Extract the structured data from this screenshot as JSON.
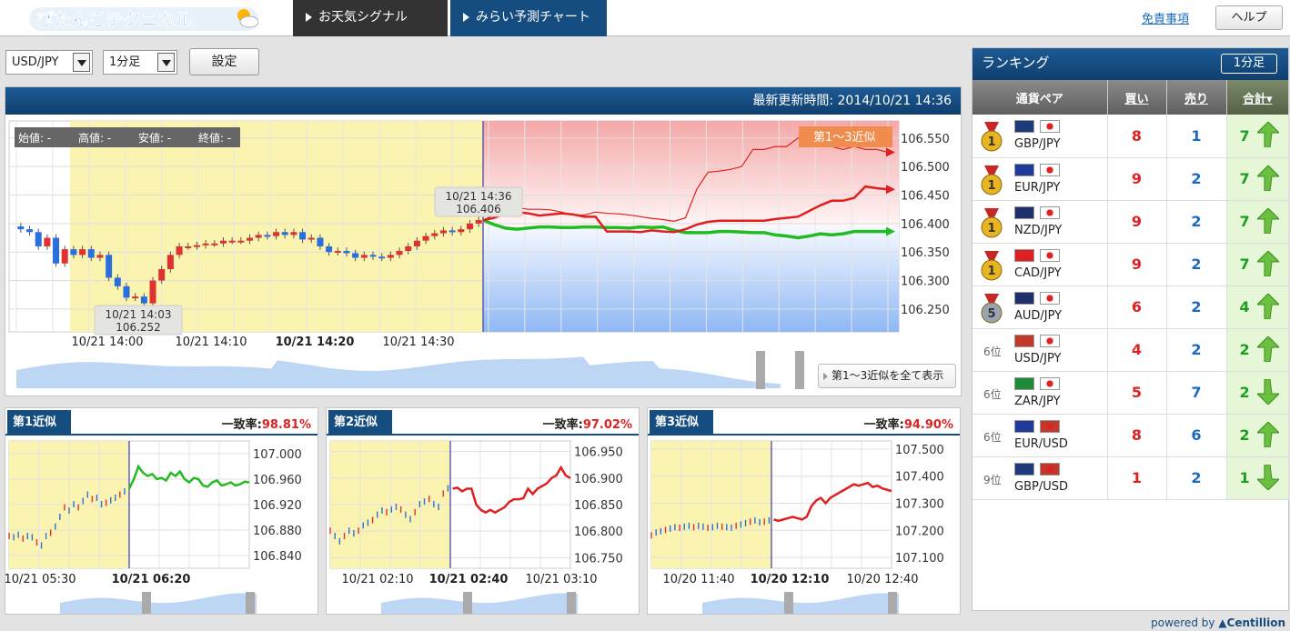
{
  "header": {
    "logo_text": "ぴたんこテクニカル",
    "tabs": [
      {
        "label": "お天気シグナル"
      },
      {
        "label": "みらい予測チャート"
      }
    ],
    "disclaimer": "免責事項",
    "help": "ヘルプ"
  },
  "controls": {
    "pair_select": "USD/JPY",
    "interval_select": "1分足",
    "set_button": "設定"
  },
  "main": {
    "updated_label": "最新更新時間: 2014/10/21 14:36",
    "ohlc": {
      "open": "始値: -",
      "high": "高値: -",
      "low": "安値: -",
      "close": "終値: -"
    },
    "legend_badge": "第1〜3近似",
    "callout_current": {
      "time": "10/21 14:36",
      "price": "106.406"
    },
    "callout_low": {
      "time": "10/21 14:03",
      "price": "106.252"
    },
    "show_all_button": "第1〜3近似を全て表示"
  },
  "chart_data": [
    {
      "type": "candlestick",
      "id": "main",
      "title": "USD/JPY 1分足",
      "x_ticks": [
        "10/21 14:00",
        "10/21 14:10",
        "10/21 14:20",
        "10/21 14:30"
      ],
      "y_ticks": [
        106.55,
        106.5,
        106.45,
        106.4,
        106.35,
        106.3,
        106.25
      ],
      "ylim": [
        106.21,
        106.58
      ],
      "current": {
        "time": "10/21 14:36",
        "price": 106.406
      },
      "low": {
        "time": "10/21 14:03",
        "price": 106.252
      },
      "closes": [
        106.39,
        106.385,
        106.36,
        106.375,
        106.33,
        106.355,
        106.345,
        106.355,
        106.34,
        106.345,
        106.305,
        106.29,
        106.27,
        106.272,
        106.26,
        106.3,
        106.32,
        106.345,
        106.36,
        106.36,
        106.362,
        106.365,
        106.365,
        106.37,
        106.37,
        106.37,
        106.375,
        106.38,
        106.378,
        106.385,
        106.38,
        106.385,
        106.372,
        106.375,
        106.36,
        106.35,
        106.352,
        106.348,
        106.34,
        106.345,
        106.342,
        106.34,
        106.345,
        106.352,
        106.36,
        106.37,
        106.378,
        106.383,
        106.388,
        106.385,
        106.39,
        106.4,
        106.406
      ],
      "series": [
        {
          "name": "第1近似",
          "values": [
            106.406,
            106.398,
            106.392,
            106.39,
            106.392,
            106.394,
            106.394,
            106.393,
            106.393,
            106.394,
            106.394,
            106.393,
            106.393,
            106.392,
            106.394,
            106.393,
            106.394,
            106.388,
            106.384,
            106.384,
            106.384,
            106.386,
            106.386,
            106.385,
            106.384,
            106.384,
            106.38,
            106.378,
            106.375,
            106.378,
            106.382,
            106.38,
            106.382,
            106.386,
            106.386,
            106.386,
            106.386
          ]
        },
        {
          "name": "第2近似",
          "values": [
            106.406,
            106.41,
            106.418,
            106.42,
            106.418,
            106.414,
            106.416,
            106.418,
            106.416,
            106.412,
            106.412,
            106.386,
            106.386,
            106.386,
            106.385,
            106.388,
            106.386,
            106.385,
            106.39,
            106.398,
            106.403,
            106.405,
            106.405,
            106.405,
            106.405,
            106.405,
            106.408,
            106.41,
            106.412,
            106.422,
            106.432,
            106.44,
            106.44,
            106.445,
            106.465,
            106.462,
            106.46
          ]
        },
        {
          "name": "第3近似",
          "values": [
            106.406,
            106.415,
            106.422,
            106.428,
            106.425,
            106.425,
            106.424,
            106.42,
            106.415,
            106.415,
            106.42,
            106.418,
            106.417,
            106.415,
            106.412,
            106.409,
            106.407,
            106.404,
            106.41,
            106.46,
            106.49,
            106.492,
            106.495,
            106.5,
            106.53,
            106.53,
            106.535,
            106.535,
            106.55,
            106.545,
            106.54,
            106.535,
            106.53,
            106.535,
            106.53,
            106.53,
            106.525
          ]
        }
      ]
    },
    {
      "type": "line",
      "id": "sub1",
      "title": "第1近似",
      "match_rate": "98.81%",
      "x_ticks": [
        "10/21 05:30",
        "10/21 06:20"
      ],
      "y_ticks": [
        107.0,
        106.96,
        106.92,
        106.88,
        106.84
      ],
      "ylim": [
        106.82,
        107.02
      ],
      "values": [
        106.87,
        106.868,
        106.872,
        106.866,
        106.87,
        106.868,
        106.86,
        106.855,
        106.87,
        106.875,
        106.885,
        106.9,
        106.915,
        106.91,
        106.92,
        106.915,
        106.925,
        106.935,
        106.928,
        106.93,
        106.92,
        106.922,
        106.926,
        106.93,
        106.935,
        106.94,
        106.945,
        106.96,
        106.98,
        106.97,
        106.965,
        106.968,
        106.96,
        106.962,
        106.958,
        106.97,
        106.965,
        106.972,
        106.96,
        106.955,
        106.962,
        106.96,
        106.95,
        106.948,
        106.955,
        106.958,
        106.95,
        106.952,
        106.955,
        106.95,
        106.952,
        106.956,
        106.955
      ]
    },
    {
      "type": "line",
      "id": "sub2",
      "title": "第2近似",
      "match_rate": "97.02%",
      "x_ticks": [
        "10/21 02:10",
        "10/21 02:40",
        "10/21 03:10"
      ],
      "y_ticks": [
        106.95,
        106.9,
        106.85,
        106.8,
        106.75
      ],
      "ylim": [
        106.73,
        106.97
      ],
      "values": [
        106.8,
        106.79,
        106.78,
        106.79,
        106.8,
        106.795,
        106.8,
        106.81,
        106.815,
        106.82,
        106.83,
        106.838,
        106.835,
        106.84,
        106.845,
        106.84,
        106.83,
        106.822,
        106.835,
        106.85,
        106.855,
        106.86,
        106.85,
        106.845,
        106.87,
        106.88,
        106.88,
        106.882,
        106.875,
        106.88,
        106.88,
        106.85,
        106.84,
        106.835,
        106.84,
        106.835,
        106.84,
        106.845,
        106.855,
        106.86,
        106.86,
        106.862,
        106.88,
        106.87,
        106.88,
        106.885,
        106.89,
        106.9,
        106.905,
        106.92,
        106.905,
        106.9
      ]
    },
    {
      "type": "line",
      "id": "sub3",
      "title": "第3近似",
      "match_rate": "94.90%",
      "x_ticks": [
        "10/20 11:40",
        "10/20 12:10",
        "10/20 12:40"
      ],
      "y_ticks": [
        107.5,
        107.4,
        107.3,
        107.2,
        107.1
      ],
      "ylim": [
        107.06,
        107.53
      ],
      "values": [
        107.18,
        107.19,
        107.195,
        107.2,
        107.205,
        107.21,
        107.208,
        107.212,
        107.215,
        107.21,
        107.215,
        107.212,
        107.208,
        107.21,
        107.215,
        107.212,
        107.21,
        107.208,
        107.215,
        107.22,
        107.225,
        107.23,
        107.235,
        107.228,
        107.23,
        107.235,
        107.24,
        107.235,
        107.24,
        107.245,
        107.25,
        107.245,
        107.24,
        107.25,
        107.29,
        107.31,
        107.32,
        107.3,
        107.32,
        107.33,
        107.34,
        107.35,
        107.36,
        107.37,
        107.365,
        107.37,
        107.375,
        107.36,
        107.365,
        107.355,
        107.35,
        107.345
      ]
    }
  ],
  "ranking": {
    "title": "ランキング",
    "interval_button": "1分足",
    "columns": {
      "pair": "通貨ペア",
      "buy": "買い",
      "sell": "売り",
      "total": "合計▾"
    },
    "rows": [
      {
        "rank": "1",
        "rank_text": "",
        "medal": "gold",
        "flags": [
          "#1f3a7a",
          "#ffffff"
        ],
        "pair": "GBP/JPY",
        "buy": "8",
        "sell": "1",
        "total": "7",
        "dir": "up"
      },
      {
        "rank": "1",
        "rank_text": "",
        "medal": "gold",
        "flags": [
          "#1f3a9a",
          "#ffffff"
        ],
        "pair": "EUR/JPY",
        "buy": "9",
        "sell": "2",
        "total": "7",
        "dir": "up"
      },
      {
        "rank": "1",
        "rank_text": "",
        "medal": "gold",
        "flags": [
          "#1f2f6a",
          "#ffffff"
        ],
        "pair": "NZD/JPY",
        "buy": "9",
        "sell": "2",
        "total": "7",
        "dir": "up"
      },
      {
        "rank": "1",
        "rank_text": "",
        "medal": "gold",
        "flags": [
          "#e02020",
          "#ffffff"
        ],
        "pair": "CAD/JPY",
        "buy": "9",
        "sell": "2",
        "total": "7",
        "dir": "up"
      },
      {
        "rank": "5",
        "rank_text": "",
        "medal": "silver",
        "flags": [
          "#1f2f6a",
          "#ffffff"
        ],
        "pair": "AUD/JPY",
        "buy": "6",
        "sell": "2",
        "total": "4",
        "dir": "up"
      },
      {
        "rank": "6",
        "rank_text": "6位",
        "medal": "",
        "flags": [
          "#c0392b",
          "#ffffff"
        ],
        "pair": "USD/JPY",
        "buy": "4",
        "sell": "2",
        "total": "2",
        "dir": "up"
      },
      {
        "rank": "6",
        "rank_text": "6位",
        "medal": "",
        "flags": [
          "#1e8a3a",
          "#ffffff"
        ],
        "pair": "ZAR/JPY",
        "buy": "5",
        "sell": "7",
        "total": "2",
        "dir": "down"
      },
      {
        "rank": "6",
        "rank_text": "6位",
        "medal": "",
        "flags": [
          "#1f3a9a",
          "#c0392b"
        ],
        "pair": "EUR/USD",
        "buy": "8",
        "sell": "6",
        "total": "2",
        "dir": "up"
      },
      {
        "rank": "9",
        "rank_text": "9位",
        "medal": "",
        "flags": [
          "#1f3a7a",
          "#c0392b"
        ],
        "pair": "GBP/USD",
        "buy": "1",
        "sell": "2",
        "total": "1",
        "dir": "down"
      }
    ]
  },
  "footer": {
    "powered_by": "powered by",
    "brand": "Centillion"
  },
  "colors": {
    "accent": "#164d80",
    "buy": "#d22222",
    "sell": "#1a6bc0",
    "green": "#22bb22",
    "past_bg": "#fbf3b0"
  }
}
